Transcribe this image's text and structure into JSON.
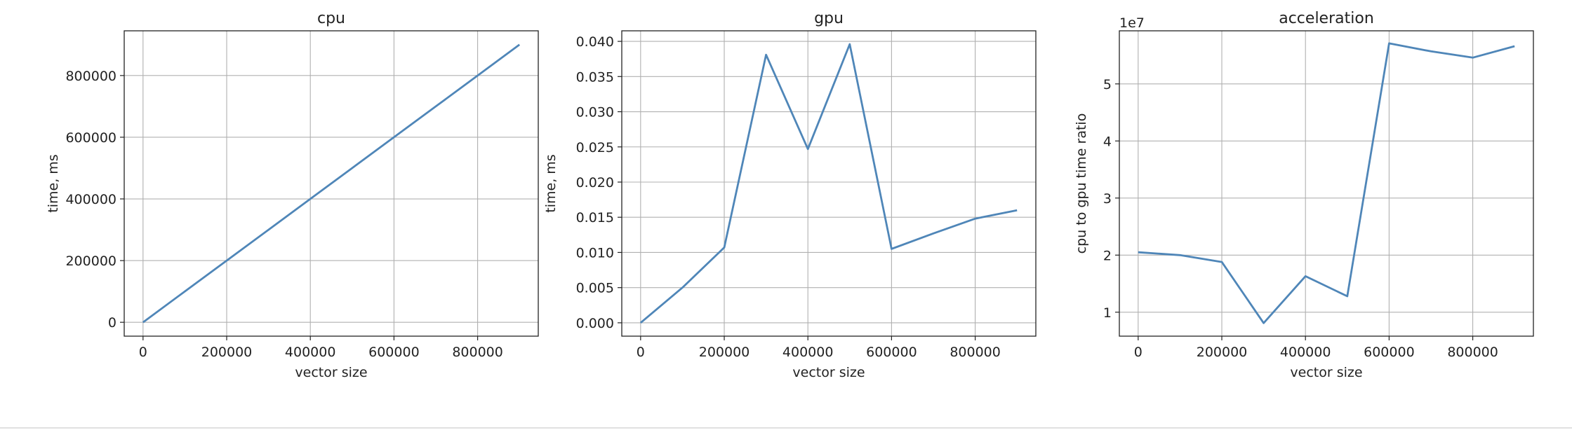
{
  "chart_data": [
    {
      "type": "line",
      "title": "cpu",
      "xlabel": "vector size",
      "ylabel": "time, ms",
      "offset_label": "",
      "xlim": [
        -45000,
        945000
      ],
      "ylim": [
        -45000,
        945000
      ],
      "xticks": [
        0,
        200000,
        400000,
        600000,
        800000
      ],
      "yticks": [
        0,
        200000,
        400000,
        600000,
        800000
      ],
      "ytick_labels": [
        "0",
        "200000",
        "400000",
        "600000",
        "800000"
      ],
      "grid": true,
      "series": [
        {
          "color": "#4f86b8",
          "x": [
            0,
            100000,
            200000,
            300000,
            400000,
            500000,
            600000,
            700000,
            800000,
            900000
          ],
          "y": [
            0,
            100000,
            200000,
            300000,
            400000,
            500000,
            600000,
            700000,
            800000,
            900000
          ]
        }
      ]
    },
    {
      "type": "line",
      "title": "gpu",
      "xlabel": "vector size",
      "ylabel": "time, ms",
      "offset_label": "",
      "xlim": [
        -45000,
        945000
      ],
      "ylim": [
        -0.0019,
        0.0415
      ],
      "xticks": [
        0,
        200000,
        400000,
        600000,
        800000
      ],
      "yticks": [
        0,
        0.005,
        0.01,
        0.015,
        0.02,
        0.025,
        0.03,
        0.035,
        0.04
      ],
      "ytick_labels": [
        "0.000",
        "0.005",
        "0.010",
        "0.015",
        "0.020",
        "0.025",
        "0.030",
        "0.035",
        "0.040"
      ],
      "grid": true,
      "series": [
        {
          "color": "#4f86b8",
          "x": [
            0,
            100000,
            200000,
            300000,
            400000,
            500000,
            600000,
            700000,
            800000,
            900000
          ],
          "y": [
            0.0,
            0.005,
            0.0107,
            0.0381,
            0.0247,
            0.0396,
            0.0105,
            0.0127,
            0.0148,
            0.016
          ]
        }
      ]
    },
    {
      "type": "line",
      "title": "acceleration",
      "xlabel": "vector size",
      "ylabel": "cpu to gpu time ratio",
      "offset_label": "1e7",
      "xlim": [
        -45000,
        945000
      ],
      "ylim": [
        5800000,
        59300000
      ],
      "xticks": [
        0,
        200000,
        400000,
        600000,
        800000
      ],
      "yticks": [
        10000000,
        20000000,
        30000000,
        40000000,
        50000000
      ],
      "ytick_labels": [
        "1",
        "2",
        "3",
        "4",
        "5"
      ],
      "grid": true,
      "series": [
        {
          "color": "#4f86b8",
          "x": [
            0,
            100000,
            200000,
            300000,
            400000,
            500000,
            600000,
            700000,
            800000,
            900000
          ],
          "y": [
            20500000,
            20000000,
            18800000,
            8100000,
            16300000,
            12800000,
            57100000,
            55700000,
            54600000,
            56600000
          ]
        }
      ]
    }
  ]
}
